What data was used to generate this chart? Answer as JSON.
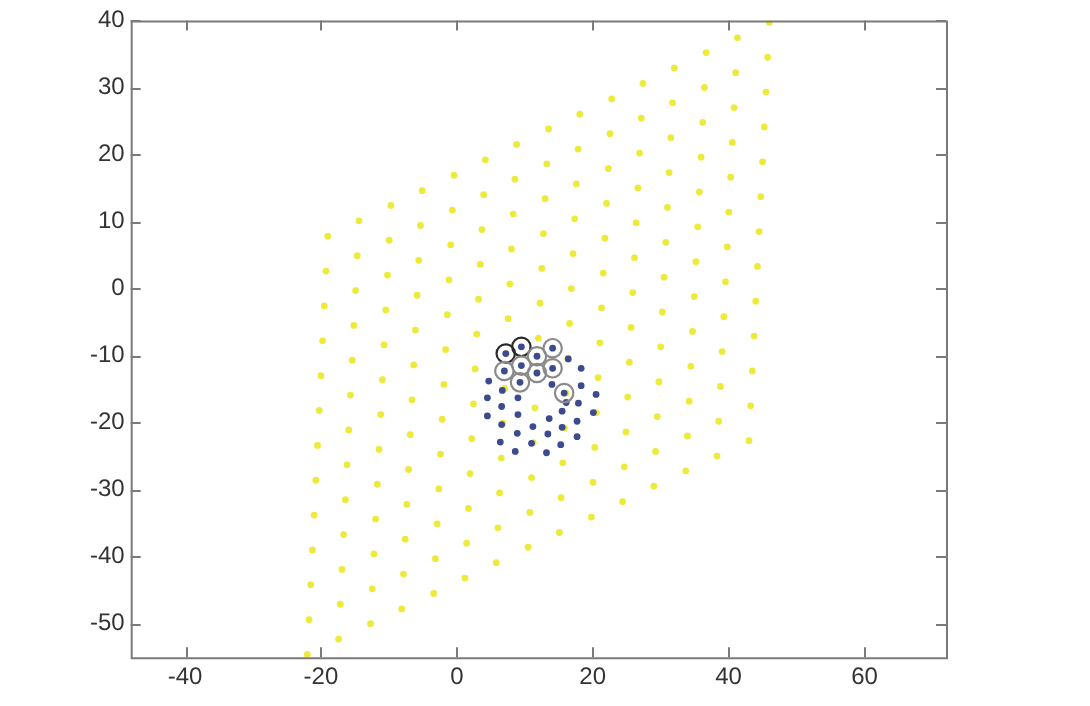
{
  "chart_data": {
    "type": "scatter",
    "xlim": [
      -48,
      72
    ],
    "ylim": [
      -55,
      40
    ],
    "xticks": [
      -40,
      -20,
      0,
      20,
      40,
      60
    ],
    "yticks": [
      -50,
      -40,
      -30,
      -20,
      -10,
      0,
      10,
      20,
      30,
      40
    ],
    "grid": false,
    "legend": false,
    "marker": "circle",
    "series": [
      {
        "color": "#ecea3a",
        "x": [
          -22,
          -21.75,
          -21.5,
          -21.25,
          -21,
          -20.75,
          -20.5,
          -20.25,
          -20,
          -19.75,
          -19.5,
          -19.25,
          -19,
          -17.4,
          -17.15,
          -16.9,
          -16.65,
          -16.4,
          -16.15,
          -15.9,
          -15.65,
          -15.4,
          -15.15,
          -14.9,
          -14.65,
          -14.4,
          -12.7,
          -12.45,
          -12.2,
          -11.95,
          -11.7,
          -11.45,
          -11.2,
          -10.95,
          -10.7,
          -10.45,
          -10.2,
          -9.95,
          -9.7,
          -8.1,
          -7.85,
          -7.6,
          -7.35,
          -7.1,
          -6.85,
          -6.6,
          -6.35,
          -6.1,
          -5.85,
          -5.6,
          -5.35,
          -5.1,
          -3.4,
          -3.15,
          -2.9,
          -2.65,
          -2.4,
          -2.15,
          -1.9,
          -1.65,
          -1.4,
          -1.15,
          -0.9,
          -0.65,
          -0.4,
          1.2,
          1.45,
          1.7,
          1.95,
          2.2,
          2.45,
          2.7,
          2.95,
          3.2,
          3.45,
          3.7,
          3.95,
          4.2,
          5.8,
          6.05,
          6.3,
          6.55,
          6.8,
          7.05,
          7.3,
          7.55,
          7.8,
          8.05,
          8.3,
          8.55,
          8.8,
          10.5,
          10.75,
          11,
          11.25,
          11.5,
          11.75,
          12,
          12.25,
          12.5,
          12.75,
          13,
          13.25,
          13.5,
          15.1,
          15.35,
          15.6,
          15.85,
          16.1,
          16.35,
          16.6,
          16.85,
          17.1,
          17.35,
          17.6,
          17.85,
          18.1,
          19.8,
          20.05,
          20.3,
          20.55,
          20.8,
          21.05,
          21.3,
          21.55,
          21.8,
          22.05,
          22.3,
          22.55,
          22.8,
          24.4,
          24.65,
          24.9,
          25.15,
          25.4,
          25.65,
          25.9,
          26.15,
          26.4,
          26.65,
          26.9,
          27.15,
          27.4,
          29,
          29.25,
          29.5,
          29.75,
          30,
          30.25,
          30.5,
          30.75,
          31,
          31.25,
          31.5,
          31.75,
          32,
          33.7,
          33.95,
          34.2,
          34.45,
          34.7,
          34.95,
          35.2,
          35.45,
          35.7,
          35.95,
          36.2,
          36.45,
          36.7,
          38.3,
          38.55,
          38.8,
          39.05,
          39.3,
          39.55,
          39.8,
          40.05,
          40.3,
          40.55,
          40.8,
          41.05,
          41.3,
          43,
          43.25,
          43.5,
          43.75,
          44,
          44.25,
          44.5,
          44.75,
          45,
          45.25,
          45.5,
          45.75,
          46
        ],
        "values": [
          -54.6,
          -49.4,
          -44.2,
          -39,
          -33.8,
          -28.6,
          -23.4,
          -18.2,
          -13,
          -7.8,
          -2.6,
          2.6,
          7.8,
          -52.3,
          -47.1,
          -41.9,
          -36.7,
          -31.5,
          -26.3,
          -21.1,
          -15.9,
          -10.7,
          -5.5,
          -0.3,
          4.9,
          10.1,
          -50,
          -44.8,
          -39.6,
          -34.4,
          -29.2,
          -24,
          -18.8,
          -13.6,
          -8.4,
          -3.2,
          2,
          7.2,
          12.4,
          -47.8,
          -42.6,
          -37.4,
          -32.2,
          -27,
          -21.8,
          -16.6,
          -11.4,
          -6.2,
          -1,
          4.2,
          9.4,
          14.6,
          -45.5,
          -40.3,
          -35.1,
          -29.9,
          -24.7,
          -19.5,
          -14.3,
          -9.1,
          -3.9,
          1.3,
          6.5,
          11.7,
          16.9,
          -43.2,
          -38,
          -32.8,
          -27.6,
          -22.4,
          -17.2,
          -12,
          -6.8,
          -1.6,
          3.6,
          8.8,
          14,
          19.2,
          -40.9,
          -35.7,
          -30.5,
          -25.3,
          -20.1,
          -14.9,
          -9.7,
          -4.5,
          0.7,
          5.9,
          11.1,
          16.3,
          21.5,
          -38.6,
          -33.4,
          -28.2,
          -23,
          -17.8,
          -12.6,
          -7.4,
          -2.2,
          3,
          8.2,
          13.4,
          18.6,
          23.8,
          -36.4,
          -31.2,
          -26,
          -20.8,
          -15.6,
          -10.4,
          -5.2,
          0,
          5.2,
          10.4,
          15.6,
          20.8,
          26,
          -34.1,
          -28.9,
          -23.7,
          -18.5,
          -13.3,
          -8.1,
          -2.9,
          2.3,
          7.5,
          12.7,
          17.9,
          23.1,
          28.3,
          -31.8,
          -26.6,
          -21.4,
          -16.2,
          -11,
          -5.8,
          -0.6,
          4.6,
          9.8,
          15,
          20.2,
          25.4,
          30.6,
          -29.5,
          -24.3,
          -19.1,
          -13.9,
          -8.7,
          -3.5,
          1.7,
          6.9,
          12.1,
          17.3,
          22.5,
          27.7,
          32.9,
          -27.2,
          -22,
          -16.8,
          -11.6,
          -6.4,
          -1.2,
          4,
          9.2,
          14.4,
          19.6,
          24.8,
          30,
          35.2,
          -25,
          -19.8,
          -14.6,
          -9.4,
          -4.2,
          1,
          6.2,
          11.4,
          16.6,
          21.8,
          27,
          32.2,
          37.4,
          -22.7,
          -17.5,
          -12.3,
          -7.1,
          -1.9,
          3.3,
          8.5,
          13.7,
          18.9,
          24.1,
          29.3,
          34.5,
          39.7
        ]
      },
      {
        "color": "#3c4a8e",
        "x": [
          7.2,
          9.5,
          11.8,
          14.1,
          7,
          9.5,
          11.8,
          14.1,
          9.3,
          15.8,
          16.4,
          18.3,
          4.7,
          14,
          18.3,
          20.5,
          6.7,
          4.5,
          9,
          16.1,
          17.9,
          20.1,
          4.5,
          6.6,
          9,
          11.2,
          13.6,
          15.5,
          6.6,
          8.9,
          13.4,
          15.5,
          17.7,
          6.4,
          8.6,
          11,
          13.2,
          15.3,
          17.7
        ],
        "values": [
          -9.7,
          -8.7,
          -10.1,
          -8.9,
          -12.3,
          -11.5,
          -12.6,
          -11.9,
          -14,
          -15.6,
          -10.5,
          -11.9,
          -13.8,
          -14.3,
          -14.5,
          -15.8,
          -15.2,
          -16.3,
          -16.3,
          -17,
          -17.1,
          -18.5,
          -19,
          -17.6,
          -18.8,
          -20.6,
          -19.4,
          -18.3,
          -20.3,
          -21.6,
          -21.7,
          -20.7,
          -19.8,
          -22.9,
          -24.3,
          -23.1,
          -24.5,
          -23.3,
          -22.1
        ]
      },
      {
        "colors": [
          "#2a2a2a",
          "#2a2a2a",
          "#8a8a8a",
          "#8a8a8a",
          "#8a8a8a",
          "#8a8a8a",
          "#8a8a8a",
          "#8a8a8a",
          "#8a8a8a",
          "#8a8a8a"
        ],
        "x": [
          7.2,
          9.5,
          11.8,
          14.1,
          7,
          9.5,
          11.8,
          14.1,
          9.3,
          15.8
        ],
        "values": [
          -9.7,
          -8.7,
          -10.1,
          -8.9,
          -12.3,
          -11.5,
          -12.6,
          -11.9,
          -14,
          -15.6
        ]
      }
    ]
  }
}
